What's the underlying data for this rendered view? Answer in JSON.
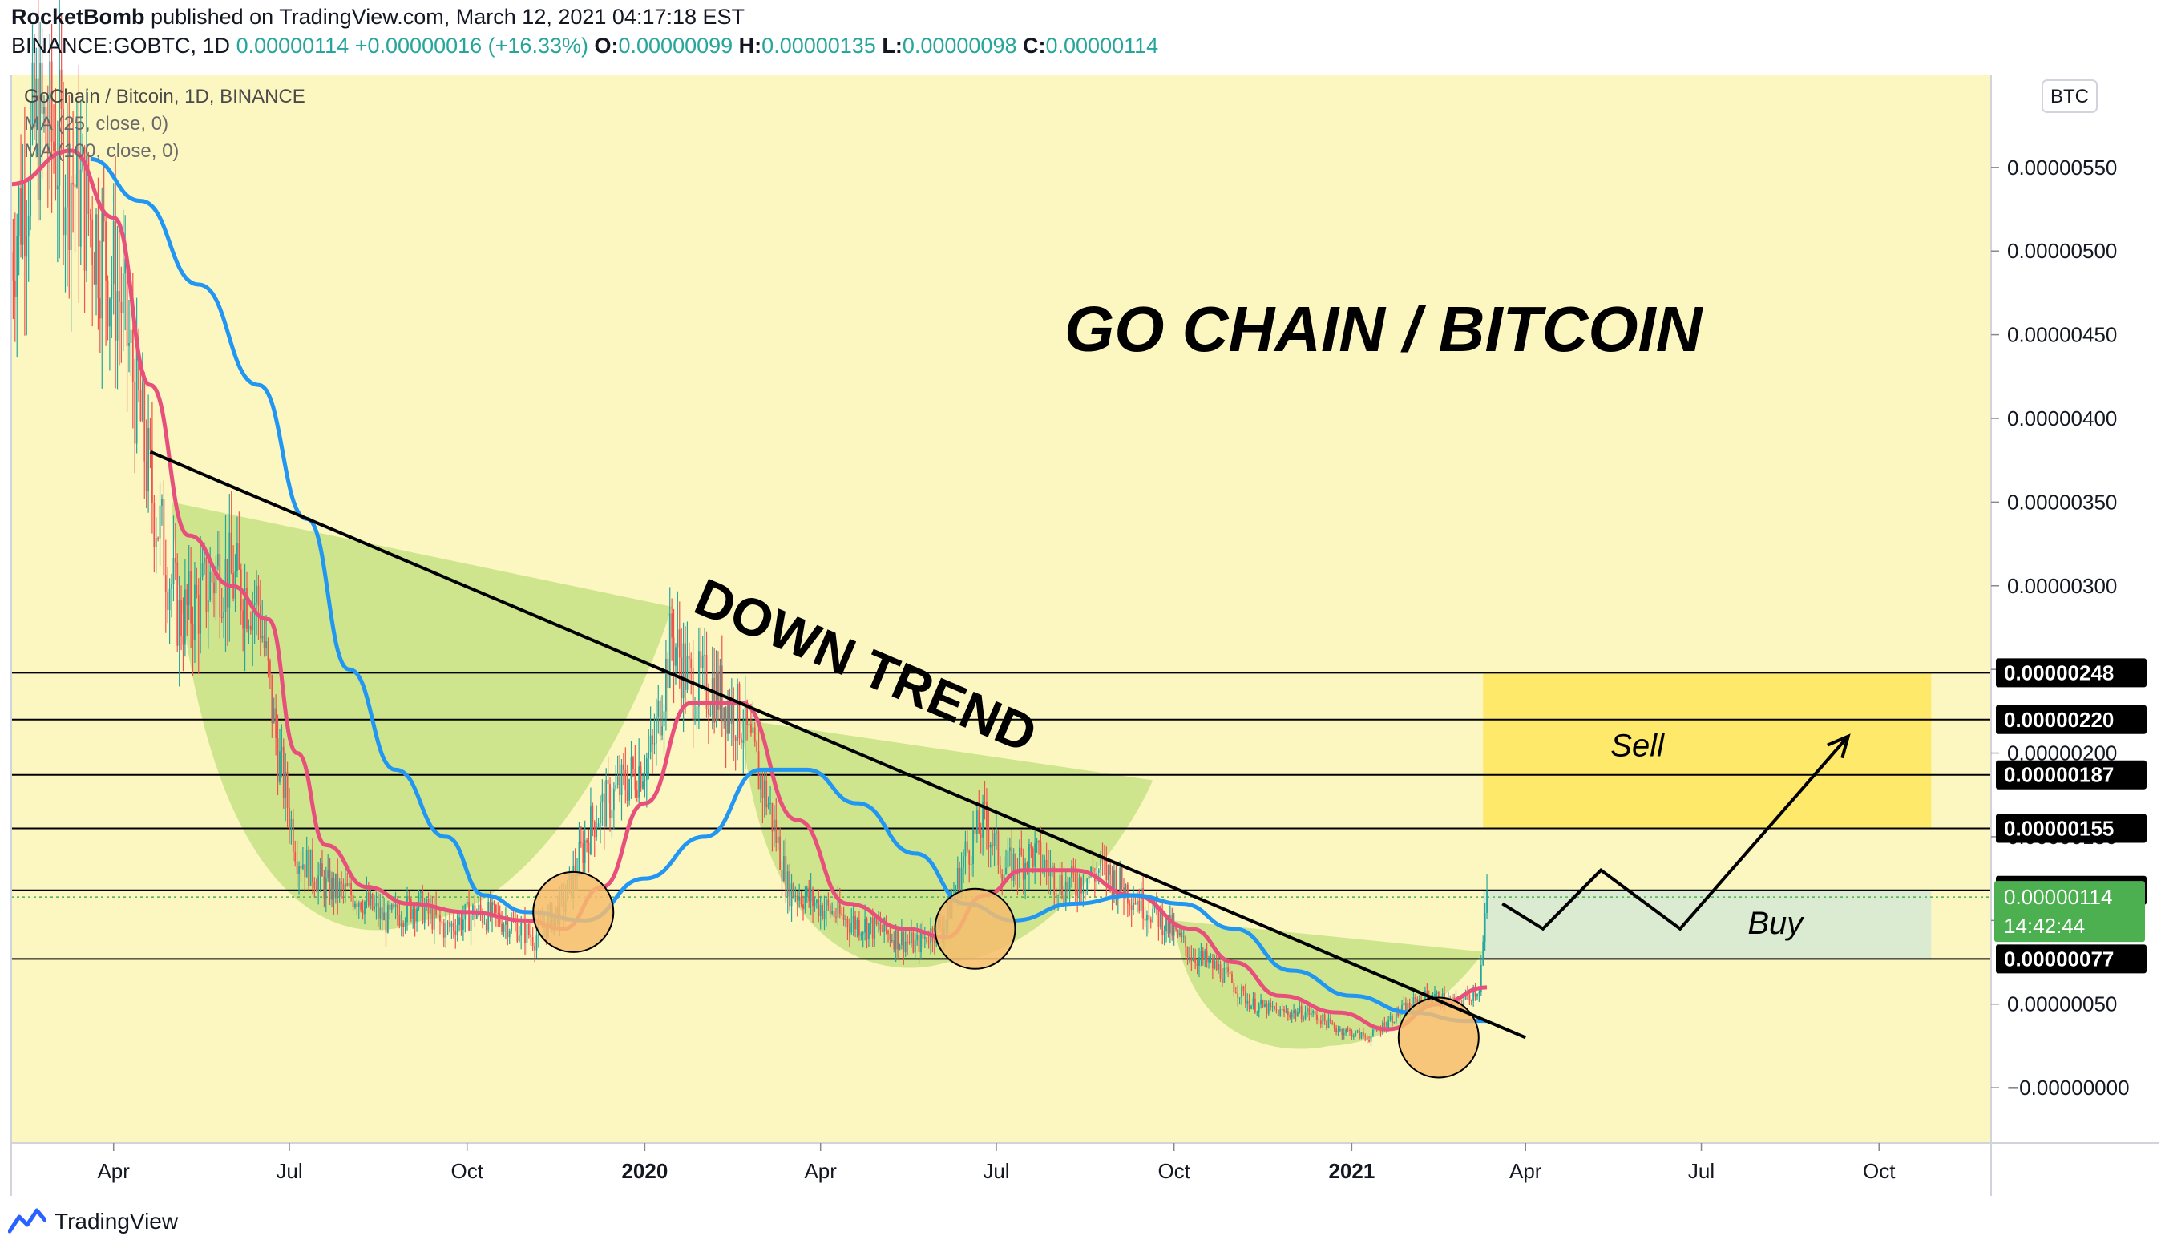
{
  "header": {
    "author": "RocketBomb",
    "published_text": "published on TradingView.com, March 12, 2021 04:17:18 EST",
    "symbol": "BINANCE:GOBTC, 1D",
    "last": "0.00000114",
    "change": "+0.00000016 (+16.33%)",
    "open_label": "O:",
    "open": "0.00000099",
    "high_label": "H:",
    "high": "0.00000135",
    "low_label": "L:",
    "low": "0.00000098",
    "close_label": "C:",
    "close": "0.00000114"
  },
  "legend": {
    "title": "GoChain / Bitcoin, 1D, BINANCE",
    "ma1": "MA (25, close, 0)",
    "ma2": "MA (100, close, 0)"
  },
  "currency_badge": "BTC",
  "footer": {
    "brand": "TradingView"
  },
  "colors": {
    "background": "#fcf6c1",
    "ma25": "#e8507c",
    "ma100": "#2196f3",
    "candle_up": "#26a69a",
    "candle_down": "#ef5350",
    "cup_fill": "#c5e284",
    "sell_zone": "#ffe862",
    "buy_zone": "#d7ead3",
    "circle_fill": "#f6bd6e",
    "last_price_tag": "#4caf50"
  },
  "chart_data": {
    "type": "candlestick",
    "title": "GO CHAIN / BITCOIN",
    "price_axis_ticks": [
      "0.00000550",
      "0.00000500",
      "0.00000450",
      "0.00000400",
      "0.00000350",
      "0.00000300",
      "0.00000250",
      "0.00000200",
      "0.00000150",
      "0.00000100",
      "0.00000050",
      "−0.00000000"
    ],
    "time_axis_ticks": [
      {
        "date": "2019-04-01",
        "label": "Apr",
        "bold": false
      },
      {
        "date": "2019-07-01",
        "label": "Jul",
        "bold": false
      },
      {
        "date": "2019-10-01",
        "label": "Oct",
        "bold": false
      },
      {
        "date": "2020-01-01",
        "label": "2020",
        "bold": true
      },
      {
        "date": "2020-04-01",
        "label": "Apr",
        "bold": false
      },
      {
        "date": "2020-07-01",
        "label": "Jul",
        "bold": false
      },
      {
        "date": "2020-10-01",
        "label": "Oct",
        "bold": false
      },
      {
        "date": "2021-01-01",
        "label": "2021",
        "bold": true
      },
      {
        "date": "2021-04-01",
        "label": "Apr",
        "bold": false
      },
      {
        "date": "2021-07-01",
        "label": "Jul",
        "bold": false
      },
      {
        "date": "2021-10-01",
        "label": "Oct",
        "bold": false
      }
    ],
    "ylim": [
      -3.3e-07,
      6.05e-06
    ],
    "xlim": [
      "2019-02-07",
      "2021-11-28"
    ],
    "price_series": [
      [
        "2019-02-07",
        5e-06
      ],
      [
        "2019-02-20",
        5.75e-06
      ],
      [
        "2019-03-05",
        5.6e-06
      ],
      [
        "2019-03-20",
        5.2e-06
      ],
      [
        "2019-04-05",
        4.7e-06
      ],
      [
        "2019-04-20",
        3.6e-06
      ],
      [
        "2019-05-05",
        2.8e-06
      ],
      [
        "2019-05-15",
        2.9e-06
      ],
      [
        "2019-05-25",
        3.1e-06
      ],
      [
        "2019-06-05",
        3e-06
      ],
      [
        "2019-06-15",
        2.9e-06
      ],
      [
        "2019-06-25",
        2e-06
      ],
      [
        "2019-07-05",
        1.4e-06
      ],
      [
        "2019-07-20",
        1.2e-06
      ],
      [
        "2019-08-05",
        1.15e-06
      ],
      [
        "2019-08-20",
        1e-06
      ],
      [
        "2019-09-05",
        1.1e-06
      ],
      [
        "2019-09-20",
        9.5e-07
      ],
      [
        "2019-10-05",
        1.05e-06
      ],
      [
        "2019-10-20",
        1e-06
      ],
      [
        "2019-11-05",
        9e-07
      ],
      [
        "2019-11-20",
        1.1e-06
      ],
      [
        "2019-12-05",
        1.6e-06
      ],
      [
        "2019-12-20",
        1.8e-06
      ],
      [
        "2020-01-05",
        2e-06
      ],
      [
        "2020-01-15",
        2.7e-06
      ],
      [
        "2020-01-25",
        2.4e-06
      ],
      [
        "2020-02-05",
        2.4e-06
      ],
      [
        "2020-02-20",
        2.2e-06
      ],
      [
        "2020-03-05",
        1.7e-06
      ],
      [
        "2020-03-15",
        1.2e-06
      ],
      [
        "2020-03-30",
        1.1e-06
      ],
      [
        "2020-04-15",
        1e-06
      ],
      [
        "2020-05-01",
        9.5e-07
      ],
      [
        "2020-05-20",
        8.5e-07
      ],
      [
        "2020-06-05",
        1e-06
      ],
      [
        "2020-06-15",
        1.4e-06
      ],
      [
        "2020-06-25",
        1.6e-06
      ],
      [
        "2020-07-05",
        1.3e-06
      ],
      [
        "2020-07-20",
        1.4e-06
      ],
      [
        "2020-08-05",
        1.2e-06
      ],
      [
        "2020-08-25",
        1.3e-06
      ],
      [
        "2020-09-10",
        1.15e-06
      ],
      [
        "2020-09-25",
        1e-06
      ],
      [
        "2020-10-10",
        8e-07
      ],
      [
        "2020-10-25",
        7e-07
      ],
      [
        "2020-11-10",
        5e-07
      ],
      [
        "2020-11-25",
        4.5e-07
      ],
      [
        "2020-12-10",
        4.5e-07
      ],
      [
        "2020-12-25",
        3.5e-07
      ],
      [
        "2021-01-10",
        3e-07
      ],
      [
        "2021-01-25",
        4.5e-07
      ],
      [
        "2021-02-10",
        5.5e-07
      ],
      [
        "2021-02-25",
        5e-07
      ],
      [
        "2021-03-08",
        6e-07
      ],
      [
        "2021-03-11",
        9.8e-07
      ],
      [
        "2021-03-12",
        1.14e-06
      ]
    ],
    "series": [
      {
        "name": "MA (25, close, 0)",
        "points": [
          [
            "2019-02-07",
            5.4e-06
          ],
          [
            "2019-03-10",
            5.6e-06
          ],
          [
            "2019-04-01",
            5.2e-06
          ],
          [
            "2019-04-20",
            4.2e-06
          ],
          [
            "2019-05-10",
            3.3e-06
          ],
          [
            "2019-06-01",
            3e-06
          ],
          [
            "2019-06-20",
            2.8e-06
          ],
          [
            "2019-07-05",
            2e-06
          ],
          [
            "2019-07-20",
            1.45e-06
          ],
          [
            "2019-08-10",
            1.2e-06
          ],
          [
            "2019-09-01",
            1.1e-06
          ],
          [
            "2019-10-01",
            1.05e-06
          ],
          [
            "2019-11-01",
            1e-06
          ],
          [
            "2019-11-20",
            9.5e-07
          ],
          [
            "2019-12-10",
            1.2e-06
          ],
          [
            "2020-01-01",
            1.7e-06
          ],
          [
            "2020-01-25",
            2.3e-06
          ],
          [
            "2020-02-20",
            2.3e-06
          ],
          [
            "2020-03-20",
            1.6e-06
          ],
          [
            "2020-04-15",
            1.1e-06
          ],
          [
            "2020-05-15",
            9.5e-07
          ],
          [
            "2020-06-05",
            9e-07
          ],
          [
            "2020-06-25",
            1.15e-06
          ],
          [
            "2020-07-15",
            1.3e-06
          ],
          [
            "2020-08-10",
            1.3e-06
          ],
          [
            "2020-09-10",
            1.15e-06
          ],
          [
            "2020-10-10",
            9.5e-07
          ],
          [
            "2020-11-01",
            7.5e-07
          ],
          [
            "2020-11-25",
            5.5e-07
          ],
          [
            "2020-12-25",
            4.5e-07
          ],
          [
            "2021-01-20",
            3.5e-07
          ],
          [
            "2021-02-15",
            5e-07
          ],
          [
            "2021-03-12",
            6e-07
          ]
        ]
      },
      {
        "name": "MA (100, close, 0)",
        "points": [
          [
            "2019-03-20",
            5.55e-06
          ],
          [
            "2019-04-15",
            5.3e-06
          ],
          [
            "2019-05-15",
            4.8e-06
          ],
          [
            "2019-06-15",
            4.2e-06
          ],
          [
            "2019-07-10",
            3.4e-06
          ],
          [
            "2019-08-01",
            2.5e-06
          ],
          [
            "2019-08-25",
            1.9e-06
          ],
          [
            "2019-09-20",
            1.5e-06
          ],
          [
            "2019-10-10",
            1.15e-06
          ],
          [
            "2019-11-01",
            1.05e-06
          ],
          [
            "2019-12-01",
            1e-06
          ],
          [
            "2020-01-01",
            1.25e-06
          ],
          [
            "2020-02-01",
            1.5e-06
          ],
          [
            "2020-03-01",
            1.9e-06
          ],
          [
            "2020-03-25",
            1.9e-06
          ],
          [
            "2020-04-20",
            1.7e-06
          ],
          [
            "2020-05-20",
            1.4e-06
          ],
          [
            "2020-06-15",
            1.1e-06
          ],
          [
            "2020-07-10",
            1e-06
          ],
          [
            "2020-08-10",
            1.1e-06
          ],
          [
            "2020-09-10",
            1.15e-06
          ],
          [
            "2020-10-05",
            1.1e-06
          ],
          [
            "2020-11-01",
            9.5e-07
          ],
          [
            "2020-12-01",
            7e-07
          ],
          [
            "2021-01-01",
            5.5e-07
          ],
          [
            "2021-02-01",
            4.5e-07
          ],
          [
            "2021-03-01",
            4e-07
          ],
          [
            "2021-03-12",
            4e-07
          ]
        ]
      }
    ],
    "horizontal_levels": [
      {
        "value": 2.48e-06,
        "label": "0.00000248"
      },
      {
        "value": 2.2e-06,
        "label": "0.00000220"
      },
      {
        "value": 1.87e-06,
        "label": "0.00000187"
      },
      {
        "value": 1.55e-06,
        "label": "0.00000155"
      },
      {
        "value": 1.18e-06,
        "label": "0.00000118"
      },
      {
        "value": 7.7e-07,
        "label": "0.00000077"
      }
    ],
    "last_price": {
      "value": 1.14e-06,
      "label": "0.00000114",
      "countdown": "14:42:44"
    },
    "annotations": {
      "trendline": {
        "start": [
          "2019-04-20",
          3.8e-06
        ],
        "end": [
          "2021-04-01",
          3e-07
        ],
        "label": "DOWN TREND"
      },
      "sell_zone": {
        "label": "Sell",
        "from": "2021-03-10",
        "to": "2021-10-28",
        "y_low": 1.55e-06,
        "y_high": 2.48e-06
      },
      "buy_zone": {
        "label": "Buy",
        "from": "2021-03-10",
        "to": "2021-10-28",
        "y_low": 7.7e-07,
        "y_high": 1.18e-06
      },
      "projection_path": [
        [
          "2021-03-20",
          1.1e-06
        ],
        [
          "2021-04-10",
          9.5e-07
        ],
        [
          "2021-05-10",
          1.3e-06
        ],
        [
          "2021-06-20",
          9.5e-07
        ],
        [
          "2021-09-15",
          2.1e-06
        ]
      ],
      "highlight_circles": [
        [
          "2019-11-25",
          1.05e-06
        ],
        [
          "2020-06-20",
          9.5e-07
        ],
        [
          "2021-02-15",
          3e-07
        ]
      ],
      "cups": [
        {
          "from": "2019-05-01",
          "to": "2020-01-15",
          "top": 3.5e-06,
          "bottom": 1e-06
        },
        {
          "from": "2020-02-20",
          "to": "2020-09-20",
          "top": 2.2e-06,
          "bottom": 7.5e-07
        },
        {
          "from": "2020-10-01",
          "to": "2021-03-10",
          "top": 1e-06,
          "bottom": 2.5e-07
        }
      ]
    }
  }
}
